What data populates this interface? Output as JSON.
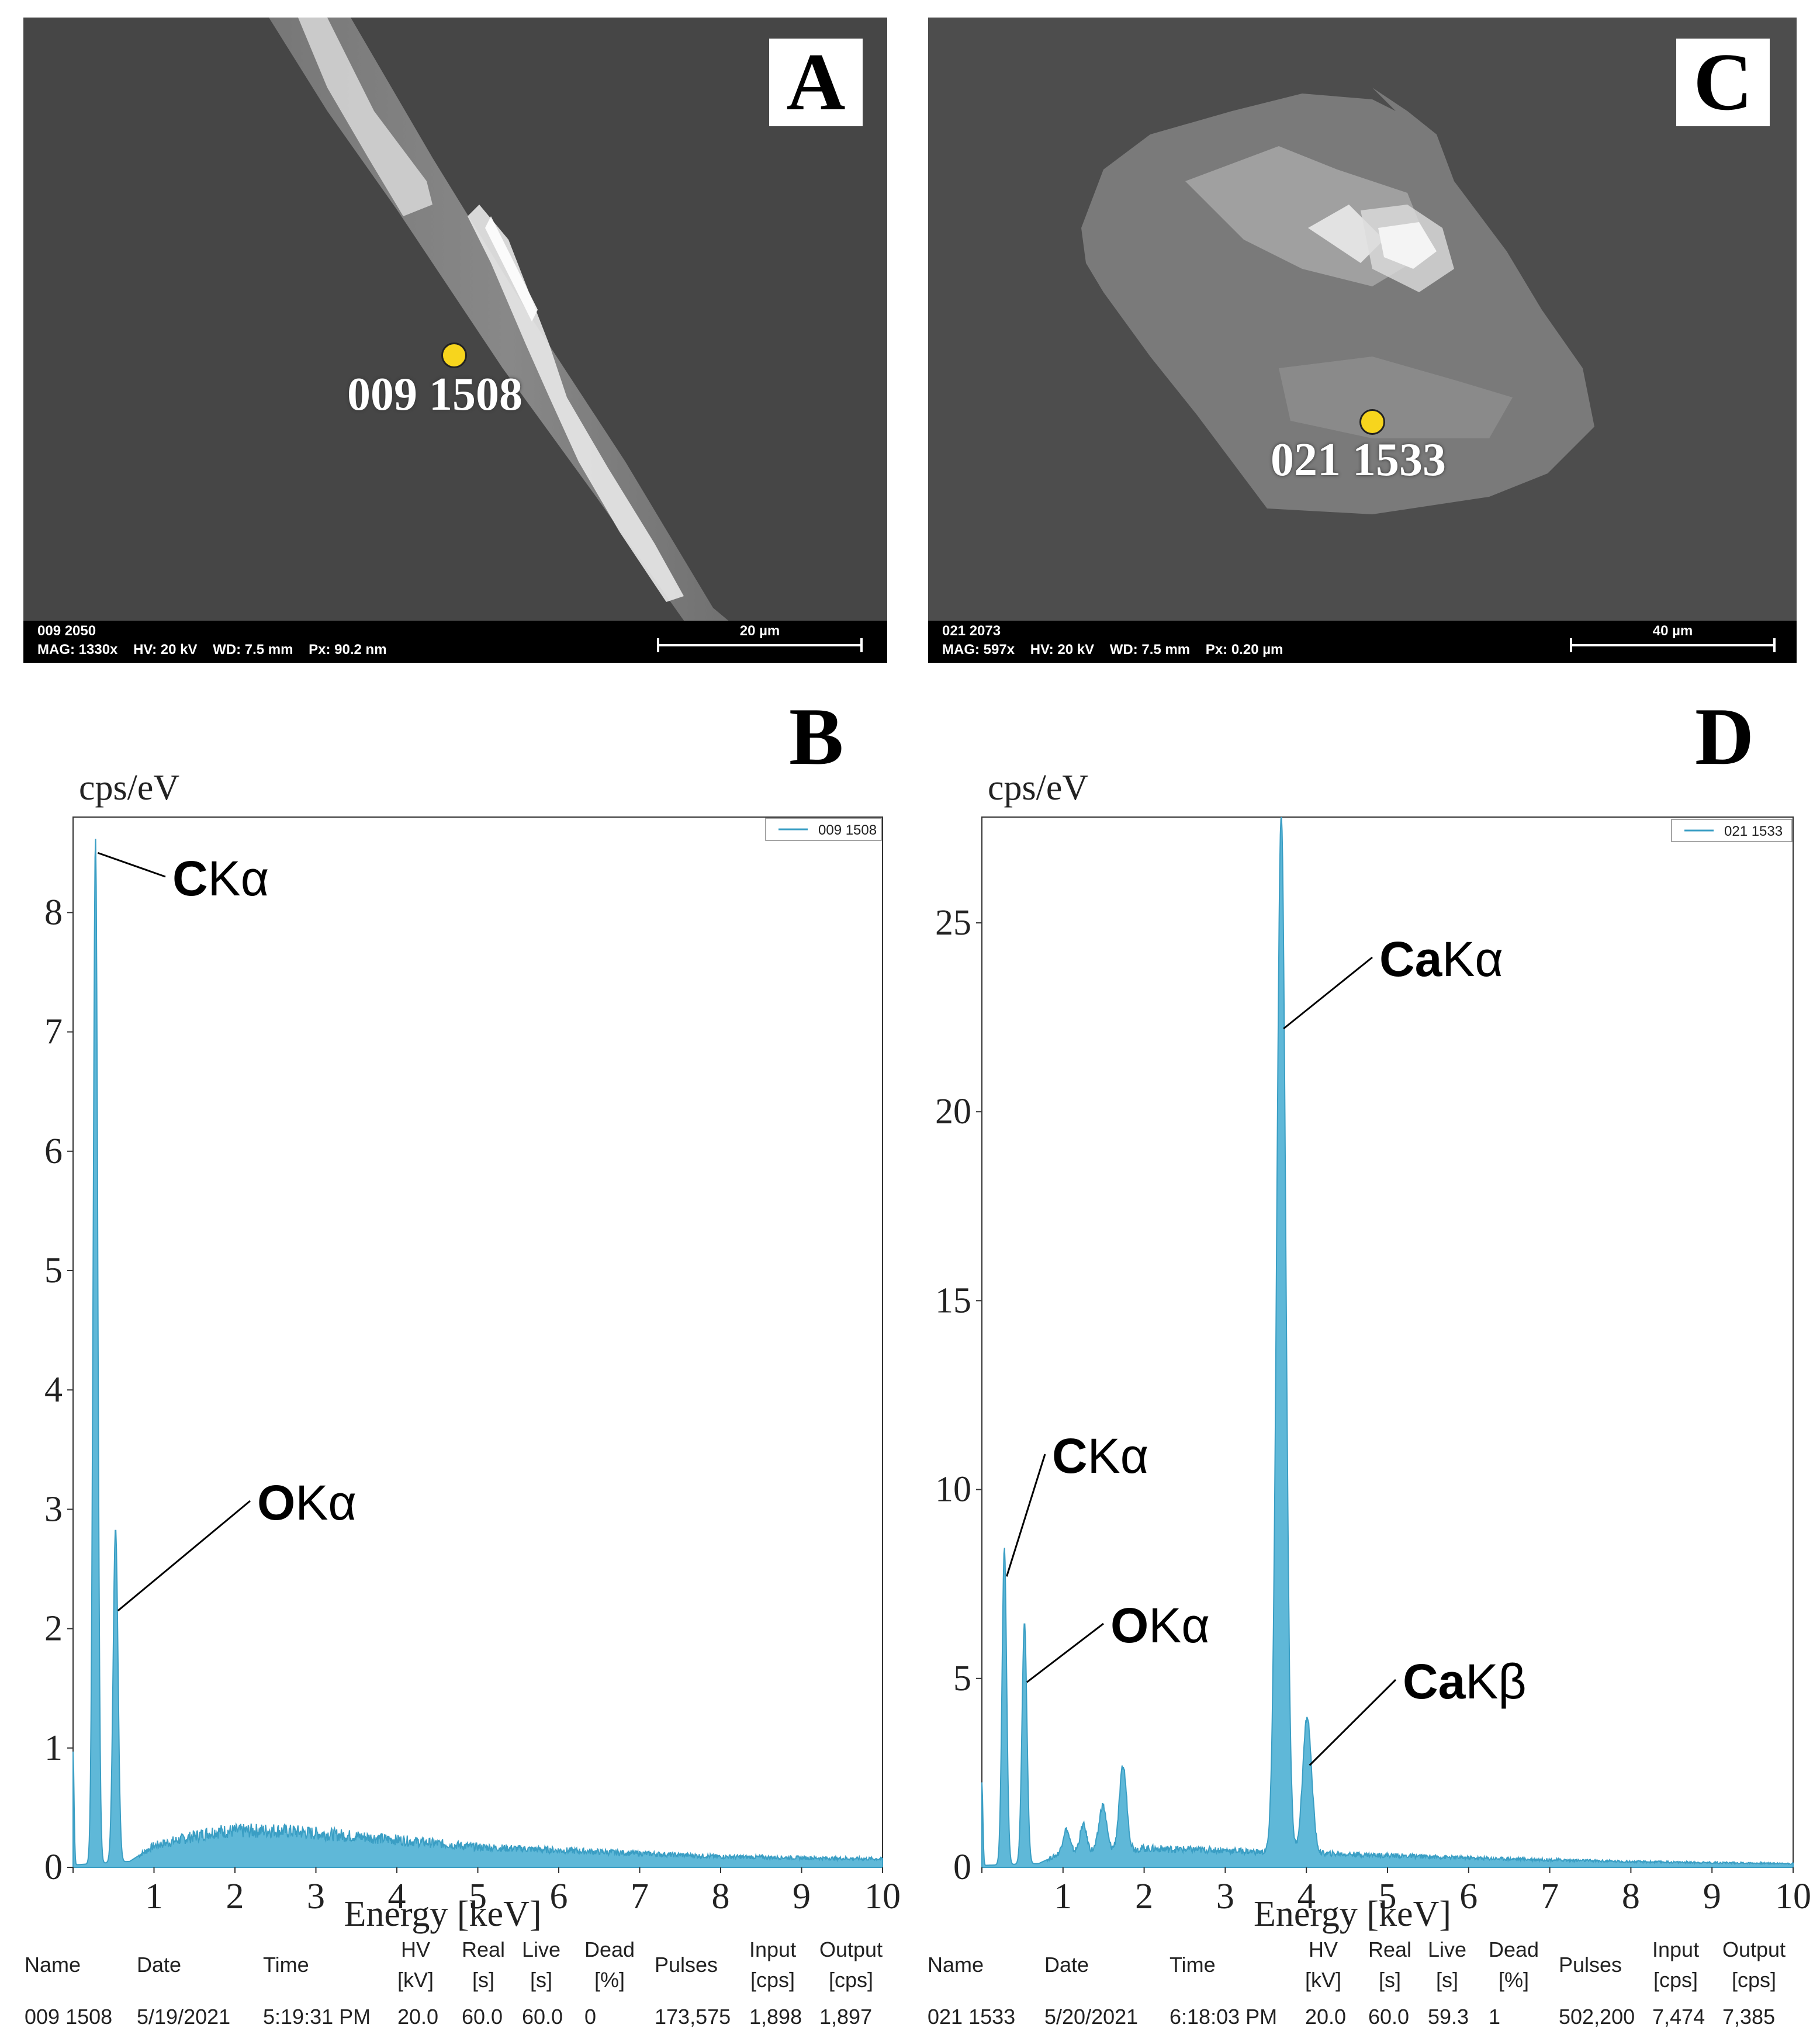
{
  "panels": {
    "A": {
      "letter": "A",
      "spot_label": "009 1508",
      "footer_line1": "009 2050",
      "footer_line2": "MAG: 1330x    HV: 20 kV    WD: 7.5 mm    Px: 90.2 nm",
      "scale_label": "20 µm"
    },
    "C": {
      "letter": "C",
      "spot_label": "021 1533",
      "footer_line1": "021 2073",
      "footer_line2": "MAG: 597x    HV: 20 kV    WD: 7.5 mm    Px: 0.20 µm",
      "scale_label": "40 µm"
    },
    "B": {
      "letter": "B"
    },
    "D": {
      "letter": "D"
    }
  },
  "chart_data": [
    {
      "panel": "B",
      "type": "area",
      "ylabel": "cps/eV",
      "xlabel": "Energy [keV]",
      "xlim": [
        0,
        10
      ],
      "ylim": [
        0,
        8.8
      ],
      "xticks": [
        0,
        1,
        2,
        3,
        4,
        5,
        6,
        7,
        8,
        9,
        10
      ],
      "yticks": [
        0,
        1,
        2,
        3,
        4,
        5,
        6,
        7,
        8
      ],
      "color": "#3a9ec4",
      "legend": [
        "009 1508"
      ],
      "legend_position": "top-right",
      "peaks": [
        {
          "energy": 0.0,
          "height": 0.95,
          "width": 0.012
        },
        {
          "energy": 0.277,
          "height": 8.6,
          "width": 0.028
        },
        {
          "energy": 0.525,
          "height": 2.8,
          "width": 0.03
        }
      ],
      "background": [
        [
          0,
          0.02
        ],
        [
          0.7,
          0.05
        ],
        [
          1.0,
          0.18
        ],
        [
          1.74,
          0.3
        ],
        [
          2.5,
          0.31
        ],
        [
          3.5,
          0.26
        ],
        [
          5,
          0.17
        ],
        [
          6.5,
          0.13
        ],
        [
          8,
          0.09
        ],
        [
          10,
          0.07
        ]
      ],
      "annotations": [
        {
          "elem": "C",
          "line": "Kα",
          "x": 0.277,
          "y": 8.5
        },
        {
          "elem": "O",
          "line": "Kα",
          "x": 0.525,
          "y": 2.15
        }
      ],
      "info": {
        "headers": [
          "Name",
          "Date",
          "Time",
          "HV\n[kV]",
          "Real\n[s]",
          "Live\n[s]",
          "Dead\n[%]",
          "Pulses",
          "Input\n[cps]",
          "Output\n[cps]"
        ],
        "values": [
          "009 1508",
          "5/19/2021",
          "5:19:31 PM",
          "20.0",
          "60.0",
          "60.0",
          "0",
          "173,575",
          "1,898",
          "1,897"
        ]
      }
    },
    {
      "panel": "D",
      "type": "area",
      "ylabel": "cps/eV",
      "xlabel": "Energy [keV]",
      "xlim": [
        0,
        10
      ],
      "ylim": [
        0,
        27.8
      ],
      "xticks": [
        0,
        1,
        2,
        3,
        4,
        5,
        6,
        7,
        8,
        9,
        10
      ],
      "yticks": [
        5,
        10,
        15,
        20,
        25
      ],
      "color": "#3a9ec4",
      "legend": [
        "021 1533"
      ],
      "legend_position": "top-right",
      "peaks": [
        {
          "energy": 0.0,
          "height": 2.2,
          "width": 0.012
        },
        {
          "energy": 0.277,
          "height": 8.4,
          "width": 0.028
        },
        {
          "energy": 0.525,
          "height": 6.4,
          "width": 0.03
        },
        {
          "energy": 1.04,
          "height": 0.6,
          "width": 0.04
        },
        {
          "energy": 1.25,
          "height": 0.7,
          "width": 0.04
        },
        {
          "energy": 1.49,
          "height": 1.2,
          "width": 0.045
        },
        {
          "energy": 1.74,
          "height": 2.2,
          "width": 0.045
        },
        {
          "energy": 3.69,
          "height": 27.5,
          "width": 0.055
        },
        {
          "energy": 4.01,
          "height": 3.6,
          "width": 0.055
        }
      ],
      "background": [
        [
          0,
          0.05
        ],
        [
          0.7,
          0.1
        ],
        [
          1.0,
          0.4
        ],
        [
          1.5,
          0.45
        ],
        [
          2.0,
          0.5
        ],
        [
          3.0,
          0.45
        ],
        [
          3.5,
          0.4
        ],
        [
          4.5,
          0.35
        ],
        [
          6,
          0.25
        ],
        [
          8,
          0.15
        ],
        [
          10,
          0.1
        ]
      ],
      "annotations": [
        {
          "elem": "C",
          "line": "Kα",
          "x": 0.277,
          "y": 7.7
        },
        {
          "elem": "O",
          "line": "Kα",
          "x": 0.525,
          "y": 4.9
        },
        {
          "elem": "Ca",
          "line": "Kα",
          "x": 3.69,
          "y": 22.2
        },
        {
          "elem": "Ca",
          "line": "Kβ",
          "x": 4.01,
          "y": 2.7
        }
      ],
      "info": {
        "headers": [
          "Name",
          "Date",
          "Time",
          "HV\n[kV]",
          "Real\n[s]",
          "Live\n[s]",
          "Dead\n[%]",
          "Pulses",
          "Input\n[cps]",
          "Output\n[cps]"
        ],
        "values": [
          "021 1533",
          "5/20/2021",
          "6:18:03 PM",
          "20.0",
          "60.0",
          "59.3",
          "1",
          "502,200",
          "7,474",
          "7,385"
        ]
      }
    }
  ]
}
